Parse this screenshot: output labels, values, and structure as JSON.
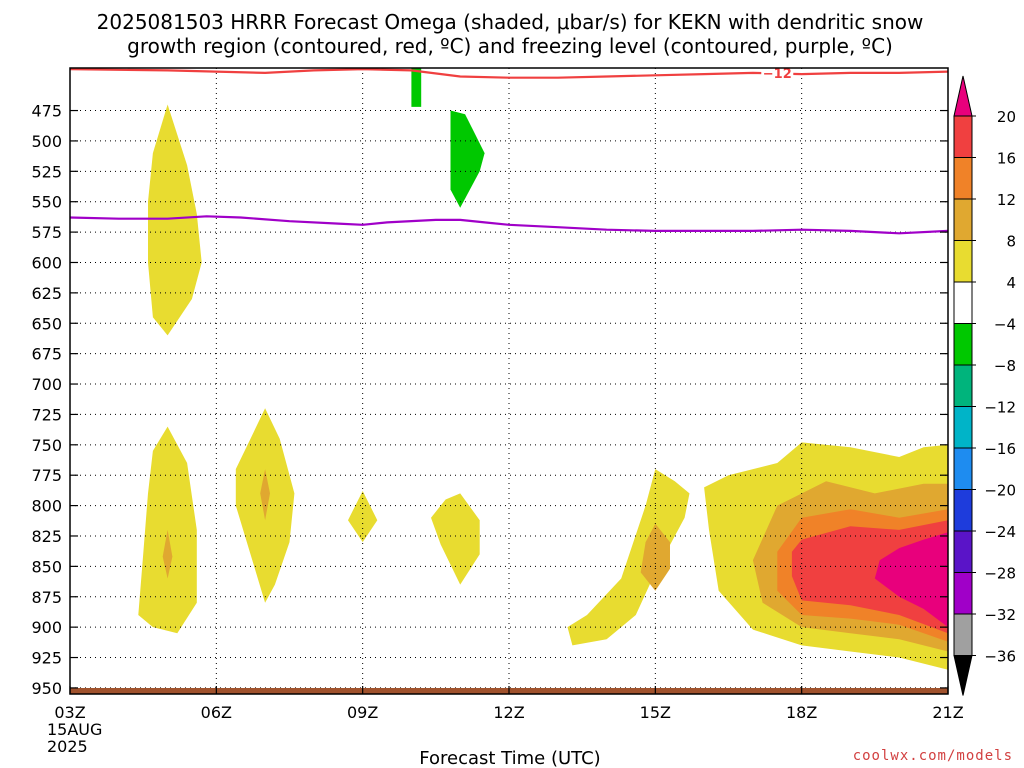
{
  "title_line1": "2025081503 HRRR Forecast Omega (shaded, μbar/s) for KEKN with dendritic snow",
  "title_line2": "growth region (contoured, red, ºC) and freezing level (contoured, purple, ºC)",
  "credit": "coolwx.com/models",
  "chart_data": {
    "type": "contour",
    "xlabel": "Forecast Time (UTC)",
    "ylabel": "",
    "x_ticks": [
      "03Z",
      "06Z",
      "09Z",
      "12Z",
      "15Z",
      "18Z",
      "21Z"
    ],
    "x_start_date": [
      "15AUG",
      "2025"
    ],
    "x_range_hours": [
      3,
      21
    ],
    "y_ticks": [
      475,
      500,
      525,
      550,
      575,
      600,
      625,
      650,
      675,
      700,
      725,
      750,
      775,
      800,
      825,
      850,
      875,
      900,
      925,
      950
    ],
    "y_range_hpa": [
      440,
      955
    ],
    "y_axis_pressure": true,
    "grid": true,
    "colorbar": {
      "labels": [
        "20",
        "16",
        "12",
        "8",
        "4",
        "−4",
        "−8",
        "−12",
        "−16",
        "−20",
        "−24",
        "−28",
        "−32",
        "−36"
      ],
      "colors": [
        "#e8007c",
        "#f04040",
        "#f08228",
        "#e0a830",
        "#e8dc30",
        "#ffffff",
        "#00c800",
        "#00b47c",
        "#00b4c8",
        "#1e8cf0",
        "#1e3cdc",
        "#5a14c8",
        "#a000c8",
        "#a0a0a0"
      ]
    },
    "contours": [
      {
        "label": "−12",
        "color": "#f04040",
        "points": [
          [
            3.0,
            441
          ],
          [
            5.0,
            442
          ],
          [
            6.0,
            443
          ],
          [
            7.0,
            444
          ],
          [
            8.0,
            442
          ],
          [
            9.0,
            441
          ],
          [
            10.0,
            442
          ],
          [
            11.0,
            447
          ],
          [
            12.0,
            448
          ],
          [
            13.0,
            448
          ],
          [
            14.0,
            447
          ],
          [
            15.0,
            446
          ],
          [
            16.0,
            445
          ],
          [
            17.0,
            444
          ],
          [
            18.0,
            445
          ],
          [
            19.0,
            444
          ],
          [
            20.0,
            444
          ],
          [
            21.0,
            443
          ]
        ]
      },
      {
        "label": "",
        "color": "#a000c8",
        "points": [
          [
            3.0,
            563
          ],
          [
            4.0,
            564
          ],
          [
            5.0,
            564
          ],
          [
            5.8,
            562
          ],
          [
            6.5,
            563
          ],
          [
            7.5,
            566
          ],
          [
            8.5,
            568
          ],
          [
            9.0,
            569
          ],
          [
            9.5,
            567
          ],
          [
            10.5,
            565
          ],
          [
            11.0,
            565
          ],
          [
            11.5,
            567
          ],
          [
            12.0,
            569
          ],
          [
            13.0,
            571
          ],
          [
            14.0,
            573
          ],
          [
            15.0,
            574
          ],
          [
            16.0,
            574
          ],
          [
            17.0,
            574
          ],
          [
            18.0,
            573
          ],
          [
            19.0,
            574
          ],
          [
            20.0,
            576
          ],
          [
            21.0,
            574
          ]
        ]
      }
    ],
    "shading": [
      {
        "omega": 4,
        "color": "#e8dc30",
        "points": [
          [
            5.0,
            470
          ],
          [
            5.4,
            520
          ],
          [
            5.6,
            560
          ],
          [
            5.7,
            600
          ],
          [
            5.5,
            630
          ],
          [
            5.0,
            660
          ],
          [
            4.7,
            645
          ],
          [
            4.6,
            600
          ],
          [
            4.6,
            550
          ],
          [
            4.7,
            510
          ]
        ]
      },
      {
        "omega": -4,
        "color": "#00c800",
        "points": [
          [
            10.0,
            440
          ],
          [
            10.2,
            440
          ],
          [
            10.2,
            472
          ],
          [
            10.0,
            472
          ]
        ]
      },
      {
        "omega": -4,
        "color": "#00c800",
        "points": [
          [
            10.8,
            475
          ],
          [
            11.1,
            478
          ],
          [
            11.5,
            510
          ],
          [
            11.4,
            525
          ],
          [
            11.0,
            555
          ],
          [
            10.8,
            540
          ],
          [
            10.8,
            510
          ]
        ]
      },
      {
        "omega": 4,
        "color": "#e8dc30",
        "points": [
          [
            5.0,
            735
          ],
          [
            5.4,
            765
          ],
          [
            5.6,
            820
          ],
          [
            5.6,
            880
          ],
          [
            5.2,
            905
          ],
          [
            4.7,
            900
          ],
          [
            4.4,
            890
          ],
          [
            4.5,
            840
          ],
          [
            4.6,
            790
          ],
          [
            4.7,
            755
          ]
        ]
      },
      {
        "omega": 8,
        "color": "#e0a830",
        "points": [
          [
            5.0,
            820
          ],
          [
            5.1,
            842
          ],
          [
            5.0,
            860
          ],
          [
            4.9,
            842
          ]
        ]
      },
      {
        "omega": 4,
        "color": "#e8dc30",
        "points": [
          [
            7.0,
            720
          ],
          [
            7.3,
            745
          ],
          [
            7.6,
            790
          ],
          [
            7.5,
            830
          ],
          [
            7.2,
            865
          ],
          [
            7.0,
            880
          ],
          [
            6.7,
            840
          ],
          [
            6.4,
            800
          ],
          [
            6.4,
            770
          ],
          [
            6.7,
            745
          ]
        ]
      },
      {
        "omega": 8,
        "color": "#e0a830",
        "points": [
          [
            7.0,
            770
          ],
          [
            7.1,
            790
          ],
          [
            7.0,
            812
          ],
          [
            6.9,
            790
          ]
        ]
      },
      {
        "omega": 4,
        "color": "#e8dc30",
        "points": [
          [
            9.0,
            788
          ],
          [
            9.3,
            812
          ],
          [
            9.0,
            830
          ],
          [
            8.7,
            812
          ]
        ]
      },
      {
        "omega": 4,
        "color": "#e8dc30",
        "points": [
          [
            10.7,
            795
          ],
          [
            11.0,
            790
          ],
          [
            11.4,
            812
          ],
          [
            11.4,
            840
          ],
          [
            11.0,
            865
          ],
          [
            10.6,
            832
          ],
          [
            10.4,
            810
          ]
        ]
      },
      {
        "omega": 4,
        "color": "#e8dc30",
        "points": [
          [
            15.0,
            770
          ],
          [
            15.4,
            780
          ],
          [
            15.7,
            790
          ],
          [
            15.6,
            810
          ],
          [
            15.0,
            855
          ],
          [
            14.6,
            890
          ],
          [
            14.0,
            910
          ],
          [
            13.3,
            915
          ],
          [
            13.2,
            900
          ],
          [
            13.6,
            890
          ],
          [
            14.3,
            860
          ],
          [
            14.8,
            800
          ]
        ]
      },
      {
        "omega": 8,
        "color": "#e0a830",
        "points": [
          [
            15.0,
            815
          ],
          [
            15.3,
            830
          ],
          [
            15.3,
            852
          ],
          [
            15.0,
            870
          ],
          [
            14.7,
            855
          ],
          [
            14.8,
            830
          ]
        ]
      },
      {
        "omega": 4,
        "color": "#e8dc30",
        "points": [
          [
            16.0,
            785
          ],
          [
            16.5,
            775
          ],
          [
            17.5,
            765
          ],
          [
            18.0,
            748
          ],
          [
            19.0,
            752
          ],
          [
            20.0,
            760
          ],
          [
            20.5,
            752
          ],
          [
            21.0,
            750
          ],
          [
            21.0,
            935
          ],
          [
            20.0,
            925
          ],
          [
            19.0,
            920
          ],
          [
            18.0,
            915
          ],
          [
            17.0,
            902
          ],
          [
            16.3,
            870
          ],
          [
            16.1,
            820
          ]
        ]
      },
      {
        "omega": 8,
        "color": "#e0a830",
        "points": [
          [
            17.5,
            800
          ],
          [
            18.5,
            780
          ],
          [
            19.5,
            790
          ],
          [
            20.5,
            782
          ],
          [
            21.0,
            782
          ],
          [
            21.0,
            920
          ],
          [
            20.0,
            910
          ],
          [
            19.0,
            905
          ],
          [
            18.0,
            900
          ],
          [
            17.2,
            880
          ],
          [
            17.0,
            845
          ]
        ]
      },
      {
        "omega": 12,
        "color": "#f08228",
        "points": [
          [
            18.0,
            810
          ],
          [
            19.0,
            803
          ],
          [
            20.0,
            810
          ],
          [
            21.0,
            803
          ],
          [
            21.0,
            912
          ],
          [
            20.0,
            898
          ],
          [
            19.0,
            893
          ],
          [
            18.0,
            890
          ],
          [
            17.5,
            870
          ],
          [
            17.5,
            838
          ]
        ]
      },
      {
        "omega": 16,
        "color": "#f04040",
        "points": [
          [
            18.0,
            828
          ],
          [
            19.0,
            817
          ],
          [
            20.0,
            820
          ],
          [
            21.0,
            812
          ],
          [
            21.0,
            905
          ],
          [
            20.0,
            890
          ],
          [
            19.0,
            882
          ],
          [
            18.0,
            878
          ],
          [
            17.8,
            858
          ],
          [
            17.8,
            838
          ]
        ]
      },
      {
        "omega": 20,
        "color": "#e8007c",
        "points": [
          [
            20.0,
            835
          ],
          [
            20.5,
            828
          ],
          [
            21.0,
            822
          ],
          [
            21.0,
            900
          ],
          [
            20.5,
            885
          ],
          [
            20.0,
            875
          ],
          [
            19.5,
            860
          ],
          [
            19.6,
            845
          ]
        ]
      }
    ]
  }
}
